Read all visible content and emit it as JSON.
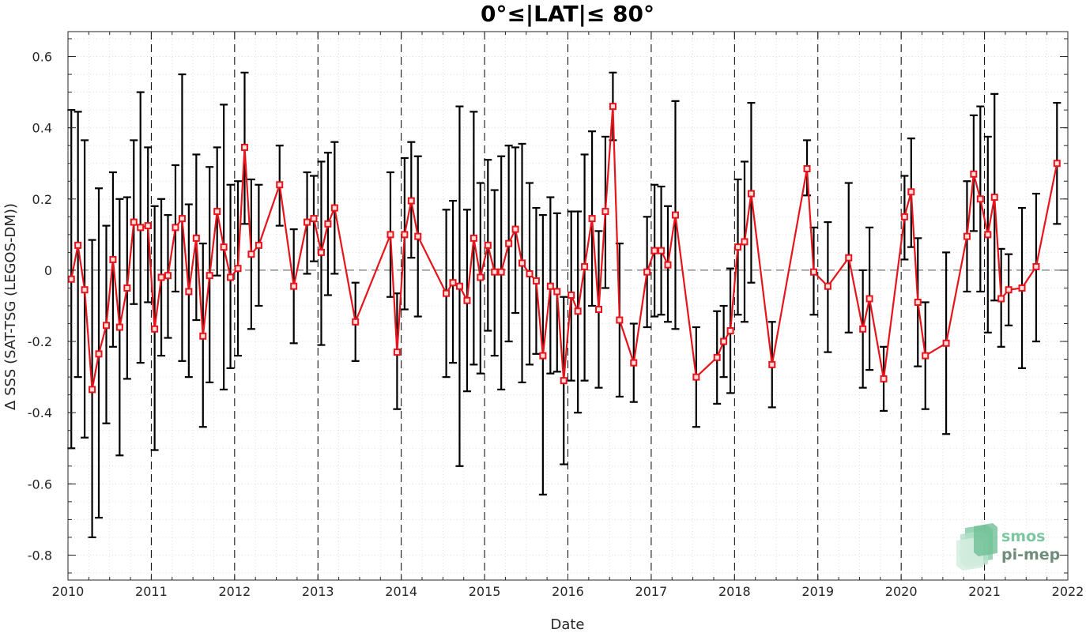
{
  "chart_data": {
    "type": "line",
    "title": "0°≤|LAT|≤ 80°",
    "xlabel": "Date",
    "ylabel": "Δ SSS (SAT-TSG (LEGOS-DM))",
    "xlim": [
      2010,
      2022
    ],
    "ylim": [
      -0.87,
      0.67
    ],
    "xticks": [
      "2010",
      "2011",
      "2012",
      "2013",
      "2014",
      "2015",
      "2016",
      "2017",
      "2018",
      "2019",
      "2020",
      "2021",
      "2022"
    ],
    "yticks": [
      "-0.8",
      "-0.6",
      "-0.4",
      "-0.2",
      "0",
      "0.2",
      "0.4",
      "0.6"
    ],
    "ytick_values": [
      -0.8,
      -0.6,
      -0.4,
      -0.2,
      0,
      0.2,
      0.4,
      0.6
    ],
    "grid": "dotted minor and major",
    "year_separators": "dashed vertical lines at each year",
    "zero_line": "dashed horizontal at 0",
    "series": [
      {
        "color": "#e8141c",
        "errorbar_color": "#000000",
        "marker": "square",
        "points": [
          {
            "x": 2010.04,
            "y": -0.025,
            "lo": -0.5,
            "hi": 0.45
          },
          {
            "x": 2010.12,
            "y": 0.07,
            "lo": -0.3,
            "hi": 0.445
          },
          {
            "x": 2010.2,
            "y": -0.055,
            "lo": -0.47,
            "hi": 0.365
          },
          {
            "x": 2010.29,
            "y": -0.335,
            "lo": -0.75,
            "hi": 0.085
          },
          {
            "x": 2010.37,
            "y": -0.235,
            "lo": -0.695,
            "hi": 0.23
          },
          {
            "x": 2010.46,
            "y": -0.155,
            "lo": -0.43,
            "hi": 0.125
          },
          {
            "x": 2010.54,
            "y": 0.03,
            "lo": -0.215,
            "hi": 0.275
          },
          {
            "x": 2010.62,
            "y": -0.16,
            "lo": -0.52,
            "hi": 0.2
          },
          {
            "x": 2010.71,
            "y": -0.05,
            "lo": -0.305,
            "hi": 0.205
          },
          {
            "x": 2010.79,
            "y": 0.135,
            "lo": -0.095,
            "hi": 0.365
          },
          {
            "x": 2010.87,
            "y": 0.12,
            "lo": -0.26,
            "hi": 0.5
          },
          {
            "x": 2010.96,
            "y": 0.125,
            "lo": -0.09,
            "hi": 0.345
          },
          {
            "x": 2011.04,
            "y": -0.165,
            "lo": -0.505,
            "hi": 0.18
          },
          {
            "x": 2011.12,
            "y": -0.02,
            "lo": -0.24,
            "hi": 0.2
          },
          {
            "x": 2011.2,
            "y": -0.015,
            "lo": -0.19,
            "hi": 0.155
          },
          {
            "x": 2011.29,
            "y": 0.12,
            "lo": -0.06,
            "hi": 0.295
          },
          {
            "x": 2011.37,
            "y": 0.145,
            "lo": -0.255,
            "hi": 0.55
          },
          {
            "x": 2011.45,
            "y": -0.06,
            "lo": -0.3,
            "hi": 0.185
          },
          {
            "x": 2011.54,
            "y": 0.09,
            "lo": -0.14,
            "hi": 0.325
          },
          {
            "x": 2011.62,
            "y": -0.185,
            "lo": -0.44,
            "hi": 0.075
          },
          {
            "x": 2011.7,
            "y": -0.015,
            "lo": -0.315,
            "hi": 0.29
          },
          {
            "x": 2011.79,
            "y": 0.165,
            "lo": -0.015,
            "hi": 0.345
          },
          {
            "x": 2011.87,
            "y": 0.065,
            "lo": -0.335,
            "hi": 0.465
          },
          {
            "x": 2011.95,
            "y": -0.02,
            "lo": -0.275,
            "hi": 0.24
          },
          {
            "x": 2012.04,
            "y": 0.005,
            "lo": -0.24,
            "hi": 0.25
          },
          {
            "x": 2012.12,
            "y": 0.345,
            "lo": 0.13,
            "hi": 0.555
          },
          {
            "x": 2012.2,
            "y": 0.045,
            "lo": -0.165,
            "hi": 0.255
          },
          {
            "x": 2012.29,
            "y": 0.07,
            "lo": -0.1,
            "hi": 0.24
          },
          {
            "x": 2012.54,
            "y": 0.24,
            "lo": 0.125,
            "hi": 0.35
          },
          {
            "x": 2012.71,
            "y": -0.045,
            "lo": -0.205,
            "hi": 0.115
          },
          {
            "x": 2012.87,
            "y": 0.135,
            "lo": -0.01,
            "hi": 0.275
          },
          {
            "x": 2012.95,
            "y": 0.145,
            "lo": 0.025,
            "hi": 0.265
          },
          {
            "x": 2013.04,
            "y": 0.05,
            "lo": -0.21,
            "hi": 0.305
          },
          {
            "x": 2013.12,
            "y": 0.13,
            "lo": -0.07,
            "hi": 0.33
          },
          {
            "x": 2013.2,
            "y": 0.175,
            "lo": -0.01,
            "hi": 0.36
          },
          {
            "x": 2013.45,
            "y": -0.145,
            "lo": -0.255,
            "hi": -0.035
          },
          {
            "x": 2013.87,
            "y": 0.1,
            "lo": -0.075,
            "hi": 0.275
          },
          {
            "x": 2013.95,
            "y": -0.23,
            "lo": -0.39,
            "hi": -0.065
          },
          {
            "x": 2014.04,
            "y": 0.1,
            "lo": -0.11,
            "hi": 0.315
          },
          {
            "x": 2014.12,
            "y": 0.195,
            "lo": 0.035,
            "hi": 0.36
          },
          {
            "x": 2014.2,
            "y": 0.095,
            "lo": -0.13,
            "hi": 0.32
          },
          {
            "x": 2014.54,
            "y": -0.065,
            "lo": -0.3,
            "hi": 0.17
          },
          {
            "x": 2014.62,
            "y": -0.035,
            "lo": -0.26,
            "hi": 0.195
          },
          {
            "x": 2014.7,
            "y": -0.045,
            "lo": -0.55,
            "hi": 0.46
          },
          {
            "x": 2014.79,
            "y": -0.085,
            "lo": -0.34,
            "hi": 0.17
          },
          {
            "x": 2014.87,
            "y": 0.09,
            "lo": -0.265,
            "hi": 0.445
          },
          {
            "x": 2014.95,
            "y": -0.02,
            "lo": -0.29,
            "hi": 0.245
          },
          {
            "x": 2015.04,
            "y": 0.07,
            "lo": -0.17,
            "hi": 0.31
          },
          {
            "x": 2015.12,
            "y": -0.005,
            "lo": -0.24,
            "hi": 0.225
          },
          {
            "x": 2015.2,
            "y": -0.005,
            "lo": -0.335,
            "hi": 0.32
          },
          {
            "x": 2015.29,
            "y": 0.075,
            "lo": -0.2,
            "hi": 0.35
          },
          {
            "x": 2015.37,
            "y": 0.115,
            "lo": -0.12,
            "hi": 0.345
          },
          {
            "x": 2015.45,
            "y": 0.02,
            "lo": -0.315,
            "hi": 0.355
          },
          {
            "x": 2015.54,
            "y": -0.01,
            "lo": -0.265,
            "hi": 0.245
          },
          {
            "x": 2015.62,
            "y": -0.03,
            "lo": -0.235,
            "hi": 0.175
          },
          {
            "x": 2015.7,
            "y": -0.24,
            "lo": -0.63,
            "hi": 0.155
          },
          {
            "x": 2015.79,
            "y": -0.045,
            "lo": -0.29,
            "hi": 0.205
          },
          {
            "x": 2015.87,
            "y": -0.06,
            "lo": -0.285,
            "hi": 0.16
          },
          {
            "x": 2015.95,
            "y": -0.31,
            "lo": -0.545,
            "hi": -0.075
          },
          {
            "x": 2016.04,
            "y": -0.07,
            "lo": -0.31,
            "hi": 0.165
          },
          {
            "x": 2016.12,
            "y": -0.115,
            "lo": -0.4,
            "hi": 0.165
          },
          {
            "x": 2016.2,
            "y": 0.01,
            "lo": -0.31,
            "hi": 0.325
          },
          {
            "x": 2016.29,
            "y": 0.145,
            "lo": -0.1,
            "hi": 0.39
          },
          {
            "x": 2016.37,
            "y": -0.11,
            "lo": -0.33,
            "hi": 0.11
          },
          {
            "x": 2016.45,
            "y": 0.165,
            "lo": -0.05,
            "hi": 0.375
          },
          {
            "x": 2016.54,
            "y": 0.46,
            "lo": 0.365,
            "hi": 0.555
          },
          {
            "x": 2016.62,
            "y": -0.14,
            "lo": -0.355,
            "hi": 0.075
          },
          {
            "x": 2016.79,
            "y": -0.26,
            "lo": -0.37,
            "hi": -0.15
          },
          {
            "x": 2016.95,
            "y": -0.005,
            "lo": -0.16,
            "hi": 0.15
          },
          {
            "x": 2017.04,
            "y": 0.055,
            "lo": -0.13,
            "hi": 0.24
          },
          {
            "x": 2017.12,
            "y": 0.055,
            "lo": -0.125,
            "hi": 0.235
          },
          {
            "x": 2017.2,
            "y": 0.015,
            "lo": -0.145,
            "hi": 0.18
          },
          {
            "x": 2017.29,
            "y": 0.155,
            "lo": -0.165,
            "hi": 0.475
          },
          {
            "x": 2017.54,
            "y": -0.3,
            "lo": -0.44,
            "hi": -0.16
          },
          {
            "x": 2017.79,
            "y": -0.245,
            "lo": -0.375,
            "hi": -0.115
          },
          {
            "x": 2017.87,
            "y": -0.2,
            "lo": -0.3,
            "hi": -0.1
          },
          {
            "x": 2017.95,
            "y": -0.17,
            "lo": -0.345,
            "hi": 0.005
          },
          {
            "x": 2018.04,
            "y": 0.065,
            "lo": -0.125,
            "hi": 0.255
          },
          {
            "x": 2018.12,
            "y": 0.08,
            "lo": -0.145,
            "hi": 0.305
          },
          {
            "x": 2018.2,
            "y": 0.215,
            "lo": -0.035,
            "hi": 0.47
          },
          {
            "x": 2018.45,
            "y": -0.265,
            "lo": -0.385,
            "hi": -0.145
          },
          {
            "x": 2018.87,
            "y": 0.285,
            "lo": 0.21,
            "hi": 0.365
          },
          {
            "x": 2018.95,
            "y": -0.005,
            "lo": -0.125,
            "hi": 0.12
          },
          {
            "x": 2019.12,
            "y": -0.045,
            "lo": -0.23,
            "hi": 0.135
          },
          {
            "x": 2019.37,
            "y": 0.035,
            "lo": -0.175,
            "hi": 0.245
          },
          {
            "x": 2019.54,
            "y": -0.165,
            "lo": -0.33,
            "hi": 0.0
          },
          {
            "x": 2019.62,
            "y": -0.08,
            "lo": -0.28,
            "hi": 0.12
          },
          {
            "x": 2019.79,
            "y": -0.305,
            "lo": -0.395,
            "hi": -0.215
          },
          {
            "x": 2020.04,
            "y": 0.15,
            "lo": 0.03,
            "hi": 0.265
          },
          {
            "x": 2020.12,
            "y": 0.22,
            "lo": 0.065,
            "hi": 0.37
          },
          {
            "x": 2020.2,
            "y": -0.09,
            "lo": -0.27,
            "hi": 0.09
          },
          {
            "x": 2020.29,
            "y": -0.24,
            "lo": -0.39,
            "hi": -0.09
          },
          {
            "x": 2020.54,
            "y": -0.205,
            "lo": -0.46,
            "hi": 0.05
          },
          {
            "x": 2020.79,
            "y": 0.095,
            "lo": -0.06,
            "hi": 0.25
          },
          {
            "x": 2020.87,
            "y": 0.27,
            "lo": 0.11,
            "hi": 0.435
          },
          {
            "x": 2020.95,
            "y": 0.2,
            "lo": -0.06,
            "hi": 0.46
          },
          {
            "x": 2021.04,
            "y": 0.1,
            "lo": -0.175,
            "hi": 0.375
          },
          {
            "x": 2021.12,
            "y": 0.205,
            "lo": -0.085,
            "hi": 0.495
          },
          {
            "x": 2021.2,
            "y": -0.08,
            "lo": -0.215,
            "hi": 0.06
          },
          {
            "x": 2021.29,
            "y": -0.055,
            "lo": -0.155,
            "hi": 0.045
          },
          {
            "x": 2021.45,
            "y": -0.05,
            "lo": -0.275,
            "hi": 0.175
          },
          {
            "x": 2021.62,
            "y": 0.01,
            "lo": -0.2,
            "hi": 0.215
          },
          {
            "x": 2021.87,
            "y": 0.3,
            "lo": 0.13,
            "hi": 0.47
          }
        ]
      }
    ]
  },
  "logo": {
    "line1": "smos",
    "line2": "pi-mep",
    "color_line1": "#7cc7a2",
    "color_line2": "#6f8c7d"
  }
}
